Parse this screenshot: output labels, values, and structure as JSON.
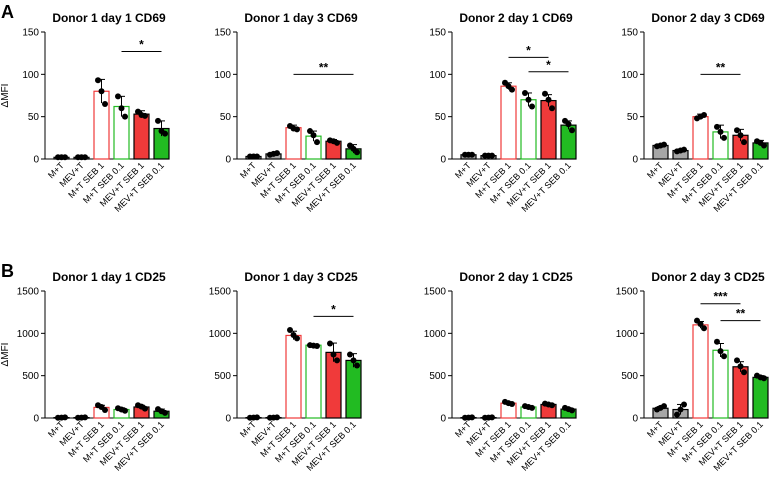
{
  "figure": {
    "panel_labels": [
      "A",
      "B"
    ],
    "categories": [
      "M+T",
      "MEV+T",
      "M+T SEB 1",
      "M+T SEB 0.1",
      "MEV+T SEB 1",
      "MEV+T SEB 0.1"
    ],
    "bar_styles": [
      {
        "fill": "#a6a6a6",
        "stroke": "#000000"
      },
      {
        "fill": "#a6a6a6",
        "stroke": "#000000"
      },
      {
        "fill": "#ffffff",
        "stroke": "#f03a3a"
      },
      {
        "fill": "#ffffff",
        "stroke": "#22bb22"
      },
      {
        "fill": "#f03a3a",
        "stroke": "#000000"
      },
      {
        "fill": "#22bb22",
        "stroke": "#000000"
      }
    ]
  },
  "chart_data": [
    {
      "type": "bar",
      "panel": "A",
      "title": "Donor 1 day 1 CD69",
      "ylabel": "ΔMFI",
      "ylim": [
        0,
        150
      ],
      "yticks": [
        0,
        50,
        100,
        150
      ],
      "categories": [
        "M+T",
        "MEV+T",
        "M+T SEB 1",
        "M+T SEB 0.1",
        "MEV+T SEB 1",
        "MEV+T SEB 0.1"
      ],
      "values": [
        2,
        2,
        80,
        62,
        53,
        36
      ],
      "errors": [
        0.5,
        0.5,
        14,
        12,
        4,
        9
      ],
      "points": [
        [
          2,
          2,
          2
        ],
        [
          2,
          2,
          2
        ],
        [
          93,
          80,
          65
        ],
        [
          74,
          60,
          50
        ],
        [
          56,
          52,
          51
        ],
        [
          45,
          33,
          30
        ]
      ],
      "significance": [
        {
          "from": 3,
          "to": 5,
          "label": "*",
          "y": 127
        }
      ]
    },
    {
      "type": "bar",
      "panel": "A",
      "title": "Donor 1 day 3 CD69",
      "ylabel": "",
      "ylim": [
        0,
        150
      ],
      "yticks": [
        0,
        50,
        100,
        150
      ],
      "categories": [
        "M+T",
        "MEV+T",
        "M+T SEB 1",
        "M+T SEB 0.1",
        "MEV+T SEB 1",
        "MEV+T SEB 0.1"
      ],
      "values": [
        3,
        6,
        37,
        27,
        21,
        12
      ],
      "errors": [
        0.5,
        1,
        3,
        6,
        2,
        5
      ],
      "points": [
        [
          3,
          3,
          3
        ],
        [
          5,
          6,
          7
        ],
        [
          39,
          36,
          35
        ],
        [
          33,
          28,
          20
        ],
        [
          22,
          21,
          19
        ],
        [
          16,
          12,
          8
        ]
      ],
      "significance": [
        {
          "from": 2,
          "to": 5,
          "label": "**",
          "y": 100
        }
      ]
    },
    {
      "type": "bar",
      "panel": "A",
      "title": "Donor 2 day 1 CD69",
      "ylabel": "",
      "ylim": [
        0,
        150
      ],
      "yticks": [
        0,
        50,
        100,
        150
      ],
      "categories": [
        "M+T",
        "MEV+T",
        "M+T SEB 1",
        "M+T SEB 0.1",
        "MEV+T SEB 1",
        "MEV+T SEB 0.1"
      ],
      "values": [
        5,
        4,
        86,
        70,
        69,
        40
      ],
      "errors": [
        0.5,
        0.5,
        4,
        8,
        7,
        5
      ],
      "points": [
        [
          5,
          5,
          5
        ],
        [
          4,
          4,
          4
        ],
        [
          90,
          86,
          82
        ],
        [
          78,
          70,
          62
        ],
        [
          77,
          70,
          60
        ],
        [
          45,
          41,
          34
        ]
      ],
      "significance": [
        {
          "from": 2,
          "to": 4,
          "label": "*",
          "y": 120
        },
        {
          "from": 3,
          "to": 5,
          "label": "*",
          "y": 103
        }
      ]
    },
    {
      "type": "bar",
      "panel": "A",
      "title": "Donor 2 day 3 CD69",
      "ylabel": "",
      "ylim": [
        0,
        150
      ],
      "yticks": [
        0,
        50,
        100,
        150
      ],
      "categories": [
        "M+T",
        "MEV+T",
        "M+T SEB 1",
        "M+T SEB 0.1",
        "MEV+T SEB 1",
        "MEV+T SEB 0.1"
      ],
      "values": [
        16,
        10,
        50,
        32,
        28,
        19
      ],
      "errors": [
        1,
        1,
        3,
        8,
        7,
        3
      ],
      "points": [
        [
          15,
          16,
          17
        ],
        [
          9,
          10,
          11
        ],
        [
          48,
          50,
          52
        ],
        [
          38,
          32,
          25
        ],
        [
          34,
          28,
          20
        ],
        [
          21,
          19,
          16
        ]
      ],
      "significance": [
        {
          "from": 2,
          "to": 4,
          "label": "**",
          "y": 100
        }
      ]
    },
    {
      "type": "bar",
      "panel": "B",
      "title": "Donor 1 day 1 CD25",
      "ylabel": "ΔMFI",
      "ylim": [
        0,
        1500
      ],
      "yticks": [
        0,
        500,
        1000,
        1500
      ],
      "categories": [
        "M+T",
        "MEV+T",
        "M+T SEB 1",
        "M+T SEB 0.1",
        "MEV+T SEB 1",
        "MEV+T SEB 0.1"
      ],
      "values": [
        5,
        5,
        125,
        100,
        130,
        80
      ],
      "errors": [
        3,
        3,
        25,
        20,
        20,
        25
      ],
      "points": [
        [
          3,
          5,
          7
        ],
        [
          3,
          5,
          7
        ],
        [
          150,
          130,
          95
        ],
        [
          115,
          100,
          85
        ],
        [
          150,
          135,
          110
        ],
        [
          105,
          80,
          60
        ]
      ],
      "significance": []
    },
    {
      "type": "bar",
      "panel": "B",
      "title": "Donor 1 day 3 CD25",
      "ylabel": "",
      "ylim": [
        0,
        1500
      ],
      "yticks": [
        0,
        500,
        1000,
        1500
      ],
      "categories": [
        "M+T",
        "MEV+T",
        "M+T SEB 1",
        "M+T SEB 0.1",
        "MEV+T SEB 1",
        "MEV+T SEB 0.1"
      ],
      "values": [
        5,
        5,
        975,
        860,
        775,
        680
      ],
      "errors": [
        3,
        3,
        50,
        5,
        110,
        80
      ],
      "points": [
        [
          3,
          5,
          7
        ],
        [
          3,
          5,
          7
        ],
        [
          1040,
          980,
          940
        ],
        [
          860,
          855,
          850
        ],
        [
          880,
          750,
          680
        ],
        [
          750,
          680,
          620
        ]
      ],
      "significance": [
        {
          "from": 3,
          "to": 5,
          "label": "*",
          "y": 1200
        }
      ]
    },
    {
      "type": "bar",
      "panel": "B",
      "title": "Donor 2 day 1 CD25",
      "ylabel": "",
      "ylim": [
        0,
        1500
      ],
      "yticks": [
        0,
        500,
        1000,
        1500
      ],
      "categories": [
        "M+T",
        "MEV+T",
        "M+T SEB 1",
        "M+T SEB 0.1",
        "MEV+T SEB 1",
        "MEV+T SEB 0.1"
      ],
      "values": [
        5,
        5,
        175,
        130,
        160,
        105
      ],
      "errors": [
        3,
        3,
        15,
        12,
        10,
        15
      ],
      "points": [
        [
          3,
          5,
          7
        ],
        [
          3,
          5,
          7
        ],
        [
          190,
          175,
          165
        ],
        [
          140,
          130,
          120
        ],
        [
          170,
          160,
          150
        ],
        [
          120,
          105,
          90
        ]
      ],
      "significance": []
    },
    {
      "type": "bar",
      "panel": "B",
      "title": "Donor 2 day 3 CD25",
      "ylabel": "",
      "ylim": [
        0,
        1500
      ],
      "yticks": [
        0,
        500,
        1000,
        1500
      ],
      "categories": [
        "M+T",
        "MEV+T",
        "M+T SEB 1",
        "M+T SEB 0.1",
        "MEV+T SEB 1",
        "MEV+T SEB 0.1"
      ],
      "values": [
        115,
        100,
        1100,
        800,
        605,
        480
      ],
      "errors": [
        20,
        60,
        40,
        80,
        60,
        20
      ],
      "points": [
        [
          100,
          120,
          140
        ],
        [
          40,
          100,
          160
        ],
        [
          1150,
          1110,
          1060
        ],
        [
          900,
          790,
          730
        ],
        [
          680,
          610,
          540
        ],
        [
          500,
          480,
          470
        ]
      ],
      "significance": [
        {
          "from": 2,
          "to": 4,
          "label": "***",
          "y": 1350
        },
        {
          "from": 3,
          "to": 5,
          "label": "**",
          "y": 1150
        }
      ]
    }
  ]
}
